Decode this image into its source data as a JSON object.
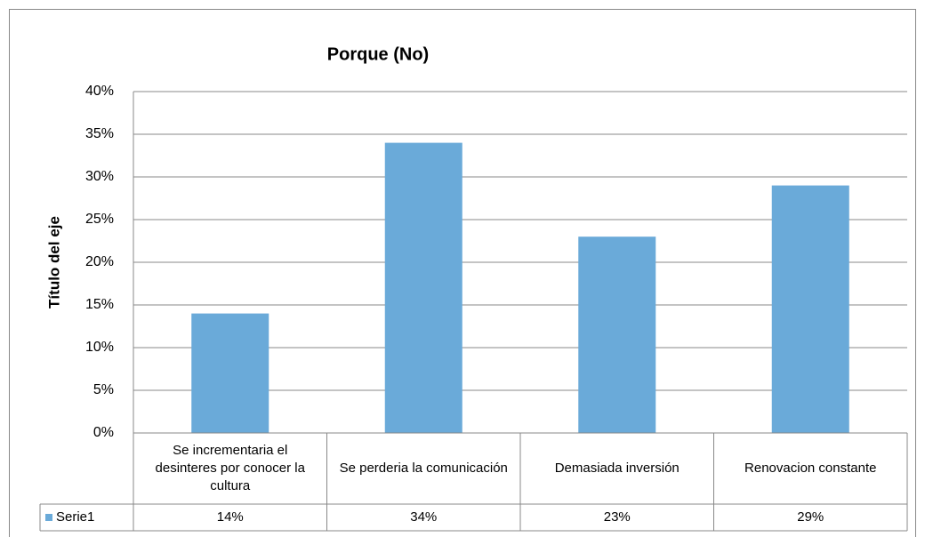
{
  "chart_data": {
    "type": "bar",
    "title": "Porque (No)",
    "y_label": "Título del eje",
    "categories": [
      "Se incrementaria el desinteres por conocer la cultura",
      "Se perderia la comunicación",
      "Demasiada inversión",
      "Renovacion constante"
    ],
    "series": [
      {
        "name": "Serie1",
        "color": "#6aaad9",
        "values": [
          14,
          34,
          23,
          29
        ],
        "value_labels": [
          "14%",
          "34%",
          "23%",
          "29%"
        ]
      }
    ],
    "ylim": [
      0,
      40
    ],
    "yticks": [
      {
        "value": 0,
        "label": "0%"
      },
      {
        "value": 5,
        "label": "5%"
      },
      {
        "value": 10,
        "label": "10%"
      },
      {
        "value": 15,
        "label": "15%"
      },
      {
        "value": 20,
        "label": "20%"
      },
      {
        "value": 25,
        "label": "25%"
      },
      {
        "value": 30,
        "label": "30%"
      },
      {
        "value": 35,
        "label": "35%"
      },
      {
        "value": 40,
        "label": "40%"
      }
    ],
    "grid": true,
    "data_table": true
  }
}
